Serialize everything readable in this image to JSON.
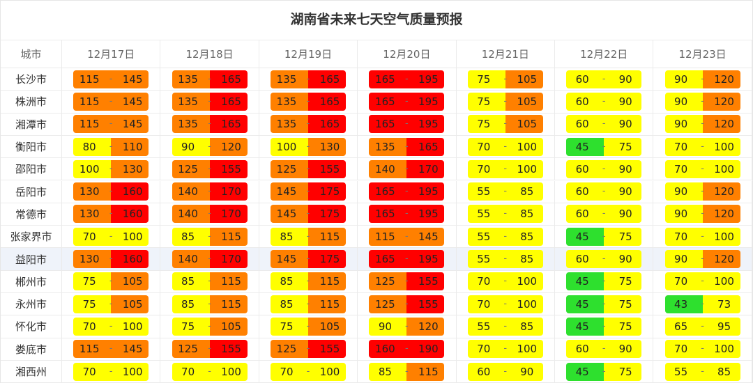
{
  "title": "湖南省未来七天空气质量预报",
  "separator": "-",
  "level_colors": [
    "#2ee02e",
    "#ffff00",
    "#ff8000",
    "#ff0000"
  ],
  "table": {
    "header": [
      "城市",
      "12月17日",
      "12月18日",
      "12月19日",
      "12月20日",
      "12月21日",
      "12月22日",
      "12月23日"
    ],
    "rows": [
      {
        "city": "长沙市",
        "cells": [
          [
            115,
            145
          ],
          [
            135,
            165
          ],
          [
            135,
            165
          ],
          [
            165,
            195
          ],
          [
            75,
            105
          ],
          [
            60,
            90
          ],
          [
            90,
            120
          ]
        ]
      },
      {
        "city": "株洲市",
        "cells": [
          [
            115,
            145
          ],
          [
            135,
            165
          ],
          [
            135,
            165
          ],
          [
            165,
            195
          ],
          [
            75,
            105
          ],
          [
            60,
            90
          ],
          [
            90,
            120
          ]
        ]
      },
      {
        "city": "湘潭市",
        "cells": [
          [
            115,
            145
          ],
          [
            135,
            165
          ],
          [
            135,
            165
          ],
          [
            165,
            195
          ],
          [
            75,
            105
          ],
          [
            60,
            90
          ],
          [
            90,
            120
          ]
        ]
      },
      {
        "city": "衡阳市",
        "cells": [
          [
            80,
            110
          ],
          [
            90,
            120
          ],
          [
            100,
            130
          ],
          [
            135,
            165
          ],
          [
            70,
            100
          ],
          [
            45,
            75
          ],
          [
            70,
            100
          ]
        ]
      },
      {
        "city": "邵阳市",
        "cells": [
          [
            100,
            130
          ],
          [
            125,
            155
          ],
          [
            125,
            155
          ],
          [
            140,
            170
          ],
          [
            70,
            100
          ],
          [
            60,
            90
          ],
          [
            70,
            100
          ]
        ]
      },
      {
        "city": "岳阳市",
        "cells": [
          [
            130,
            160
          ],
          [
            140,
            170
          ],
          [
            145,
            175
          ],
          [
            165,
            195
          ],
          [
            55,
            85
          ],
          [
            60,
            90
          ],
          [
            90,
            120
          ]
        ]
      },
      {
        "city": "常德市",
        "cells": [
          [
            130,
            160
          ],
          [
            140,
            170
          ],
          [
            145,
            175
          ],
          [
            165,
            195
          ],
          [
            55,
            85
          ],
          [
            60,
            90
          ],
          [
            90,
            120
          ]
        ]
      },
      {
        "city": "张家界市",
        "cells": [
          [
            70,
            100
          ],
          [
            85,
            115
          ],
          [
            85,
            115
          ],
          [
            115,
            145
          ],
          [
            55,
            85
          ],
          [
            45,
            75
          ],
          [
            70,
            100
          ]
        ]
      },
      {
        "city": "益阳市",
        "cells": [
          [
            130,
            160
          ],
          [
            140,
            170
          ],
          [
            145,
            175
          ],
          [
            165,
            195
          ],
          [
            55,
            85
          ],
          [
            60,
            90
          ],
          [
            90,
            120
          ]
        ]
      },
      {
        "city": "郴州市",
        "cells": [
          [
            75,
            105
          ],
          [
            85,
            115
          ],
          [
            85,
            115
          ],
          [
            125,
            155
          ],
          [
            70,
            100
          ],
          [
            45,
            75
          ],
          [
            70,
            100
          ]
        ]
      },
      {
        "city": "永州市",
        "cells": [
          [
            75,
            105
          ],
          [
            85,
            115
          ],
          [
            85,
            115
          ],
          [
            125,
            155
          ],
          [
            70,
            100
          ],
          [
            45,
            75
          ],
          [
            43,
            73
          ]
        ]
      },
      {
        "city": "怀化市",
        "cells": [
          [
            70,
            100
          ],
          [
            75,
            105
          ],
          [
            75,
            105
          ],
          [
            90,
            120
          ],
          [
            55,
            85
          ],
          [
            45,
            75
          ],
          [
            65,
            95
          ]
        ]
      },
      {
        "city": "娄底市",
        "cells": [
          [
            115,
            145
          ],
          [
            125,
            155
          ],
          [
            125,
            155
          ],
          [
            160,
            190
          ],
          [
            70,
            100
          ],
          [
            60,
            90
          ],
          [
            70,
            100
          ]
        ]
      },
      {
        "city": "湘西州",
        "cells": [
          [
            70,
            100
          ],
          [
            70,
            100
          ],
          [
            70,
            100
          ],
          [
            85,
            115
          ],
          [
            60,
            90
          ],
          [
            45,
            75
          ],
          [
            55,
            85
          ]
        ]
      }
    ]
  }
}
